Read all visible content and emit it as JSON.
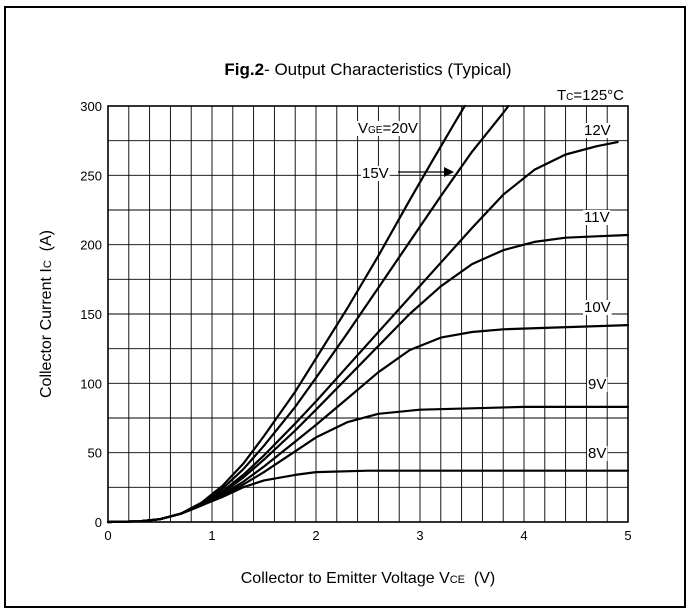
{
  "chart_data": {
    "type": "line",
    "title": {
      "bold": "Fig.2",
      "rest": "- Output Characteristics (Typical)"
    },
    "condition": {
      "main": "T",
      "sub": "C",
      "rest": "=125°C"
    },
    "xlabel": {
      "main": "Collector to Emitter Voltage V",
      "sub": "CE",
      "rest": "  (V)"
    },
    "ylabel": {
      "main": "Collector Current I",
      "sub": "C",
      "rest": "  (A)"
    },
    "xlim": [
      0,
      5
    ],
    "ylim": [
      0,
      300
    ],
    "x_ticks": [
      "0",
      "1",
      "2",
      "3",
      "4",
      "5"
    ],
    "y_ticks": [
      "0",
      "50",
      "100",
      "150",
      "200",
      "250",
      "300"
    ],
    "grid": true,
    "series": [
      {
        "name": "VGE=20V",
        "points": [
          [
            0,
            0
          ],
          [
            0.3,
            0.5
          ],
          [
            0.5,
            2
          ],
          [
            0.7,
            6
          ],
          [
            0.9,
            14
          ],
          [
            1.1,
            26
          ],
          [
            1.3,
            42
          ],
          [
            1.5,
            62
          ],
          [
            1.8,
            94
          ],
          [
            2.0,
            118
          ],
          [
            2.3,
            154
          ],
          [
            2.6,
            192
          ],
          [
            2.9,
            232
          ],
          [
            3.1,
            258
          ],
          [
            3.35,
            290
          ],
          [
            3.43,
            300
          ]
        ]
      },
      {
        "name": "15V",
        "points": [
          [
            0,
            0
          ],
          [
            0.3,
            0.5
          ],
          [
            0.5,
            2
          ],
          [
            0.7,
            6
          ],
          [
            0.9,
            13
          ],
          [
            1.1,
            24
          ],
          [
            1.3,
            38
          ],
          [
            1.5,
            55
          ],
          [
            1.8,
            83
          ],
          [
            2.0,
            104
          ],
          [
            2.3,
            136
          ],
          [
            2.6,
            169
          ],
          [
            2.9,
            202
          ],
          [
            3.2,
            235
          ],
          [
            3.5,
            267
          ],
          [
            3.8,
            295
          ],
          [
            3.85,
            300
          ]
        ]
      },
      {
        "name": "12V",
        "points": [
          [
            0,
            0
          ],
          [
            0.3,
            0.5
          ],
          [
            0.5,
            2
          ],
          [
            0.7,
            6
          ],
          [
            0.9,
            13
          ],
          [
            1.1,
            22
          ],
          [
            1.3,
            34
          ],
          [
            1.5,
            48
          ],
          [
            1.8,
            71
          ],
          [
            2.0,
            87
          ],
          [
            2.3,
            112
          ],
          [
            2.6,
            137
          ],
          [
            2.9,
            162
          ],
          [
            3.2,
            187
          ],
          [
            3.5,
            212
          ],
          [
            3.8,
            236
          ],
          [
            4.1,
            254
          ],
          [
            4.4,
            265
          ],
          [
            4.7,
            271
          ],
          [
            4.9,
            274
          ]
        ]
      },
      {
        "name": "11V",
        "points": [
          [
            0,
            0
          ],
          [
            0.3,
            0.5
          ],
          [
            0.5,
            2
          ],
          [
            0.7,
            6
          ],
          [
            0.9,
            12
          ],
          [
            1.1,
            21
          ],
          [
            1.3,
            32
          ],
          [
            1.5,
            45
          ],
          [
            1.8,
            66
          ],
          [
            2.0,
            81
          ],
          [
            2.3,
            104
          ],
          [
            2.6,
            127
          ],
          [
            2.9,
            150
          ],
          [
            3.2,
            170
          ],
          [
            3.5,
            186
          ],
          [
            3.8,
            196
          ],
          [
            4.1,
            202
          ],
          [
            4.4,
            205
          ],
          [
            4.7,
            206
          ],
          [
            5.0,
            207
          ]
        ]
      },
      {
        "name": "10V",
        "points": [
          [
            0,
            0
          ],
          [
            0.3,
            0.5
          ],
          [
            0.5,
            2
          ],
          [
            0.7,
            6
          ],
          [
            0.9,
            12
          ],
          [
            1.1,
            20
          ],
          [
            1.3,
            29
          ],
          [
            1.5,
            40
          ],
          [
            1.8,
            58
          ],
          [
            2.0,
            70
          ],
          [
            2.3,
            89
          ],
          [
            2.6,
            108
          ],
          [
            2.9,
            124
          ],
          [
            3.2,
            133
          ],
          [
            3.5,
            137
          ],
          [
            3.8,
            139
          ],
          [
            4.2,
            140
          ],
          [
            4.6,
            141
          ],
          [
            5.0,
            142
          ]
        ]
      },
      {
        "name": "9V",
        "points": [
          [
            0,
            0
          ],
          [
            0.3,
            0.5
          ],
          [
            0.5,
            2
          ],
          [
            0.7,
            6
          ],
          [
            0.9,
            12
          ],
          [
            1.1,
            19
          ],
          [
            1.3,
            27
          ],
          [
            1.5,
            36
          ],
          [
            1.8,
            51
          ],
          [
            2.0,
            61
          ],
          [
            2.3,
            72
          ],
          [
            2.6,
            78
          ],
          [
            3.0,
            81
          ],
          [
            3.5,
            82
          ],
          [
            4.0,
            83
          ],
          [
            4.5,
            83
          ],
          [
            5.0,
            83
          ]
        ]
      },
      {
        "name": "8V",
        "points": [
          [
            0,
            0
          ],
          [
            0.3,
            0.5
          ],
          [
            0.5,
            2
          ],
          [
            0.7,
            6
          ],
          [
            0.9,
            12
          ],
          [
            1.1,
            18
          ],
          [
            1.3,
            25
          ],
          [
            1.5,
            30
          ],
          [
            1.8,
            34
          ],
          [
            2.0,
            36
          ],
          [
            2.5,
            37
          ],
          [
            3.0,
            37
          ],
          [
            4.0,
            37
          ],
          [
            5.0,
            37
          ]
        ]
      }
    ],
    "curve_labels": [
      {
        "main": "V",
        "sub": "GE",
        "rest": "=20V"
      },
      {
        "main": "15V",
        "sub": "",
        "rest": ""
      },
      {
        "main": "12V",
        "sub": "",
        "rest": ""
      },
      {
        "main": "11V",
        "sub": "",
        "rest": ""
      },
      {
        "main": "10V",
        "sub": "",
        "rest": ""
      },
      {
        "main": "9V",
        "sub": "",
        "rest": ""
      },
      {
        "main": "8V",
        "sub": "",
        "rest": ""
      }
    ]
  }
}
